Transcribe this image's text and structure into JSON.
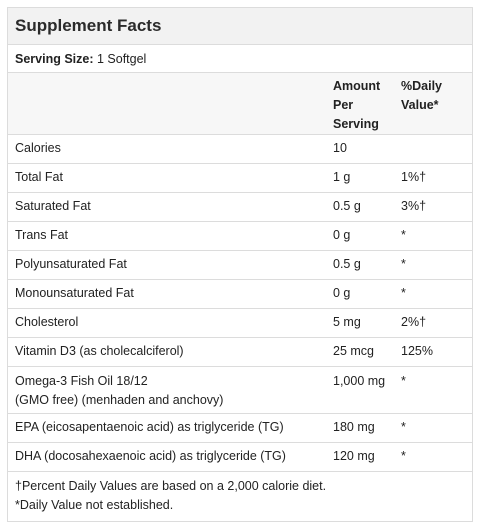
{
  "title": "Supplement Facts",
  "serving": {
    "label": "Serving Size:",
    "value": "1 Softgel"
  },
  "columns": {
    "name": "",
    "amount_line1": "Amount",
    "amount_line2": "Per",
    "amount_line3": "Serving",
    "dv_line1": "%Daily",
    "dv_line2": "Value*"
  },
  "rows": [
    {
      "name": "Calories",
      "amount": "10",
      "dv": ""
    },
    {
      "name": "Total Fat",
      "amount": "1 g",
      "dv": "1%†"
    },
    {
      "name": "Saturated Fat",
      "amount": "0.5 g",
      "dv": "3%†"
    },
    {
      "name": "Trans Fat",
      "amount": "0 g",
      "dv": "*"
    },
    {
      "name": "Polyunsaturated Fat",
      "amount": "0.5 g",
      "dv": "*"
    },
    {
      "name": "Monounsaturated Fat",
      "amount": "0 g",
      "dv": "*"
    },
    {
      "name": "Cholesterol",
      "amount": "5 mg",
      "dv": "2%†"
    },
    {
      "name": "Vitamin D3 (as cholecalciferol)",
      "amount": "25 mcg",
      "dv": "125%"
    },
    {
      "name_line1": "Omega-3 Fish Oil 18/12",
      "name_line2": "(GMO free) (menhaden and anchovy)",
      "amount": "1,000 mg",
      "dv": "*"
    },
    {
      "name": "EPA (eicosapentaenoic acid) as triglyceride (TG)",
      "amount": "180 mg",
      "dv": "*"
    },
    {
      "name": "DHA (docosahexaenoic acid) as triglyceride (TG)",
      "amount": "120 mg",
      "dv": "*"
    }
  ],
  "footnotes": {
    "line1": "†Percent Daily Values are based on a 2,000 calorie diet.",
    "line2": "*Daily Value not established."
  }
}
